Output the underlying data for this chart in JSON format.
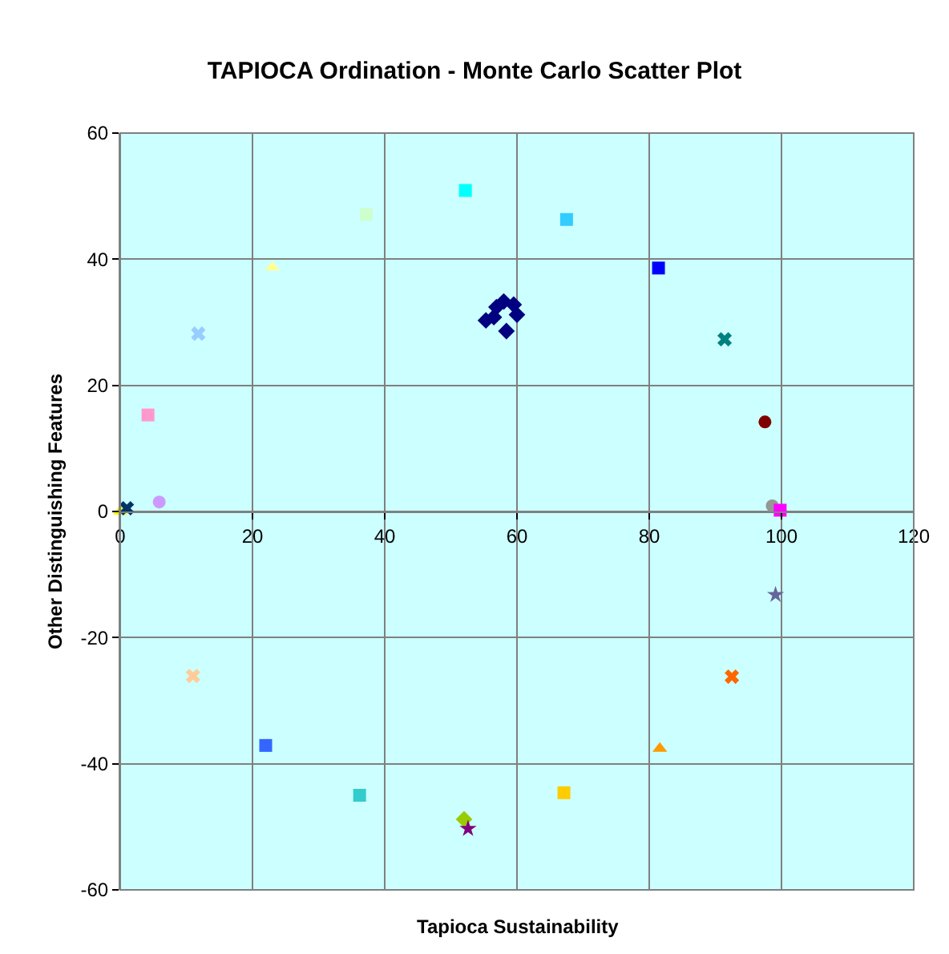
{
  "chart_data": {
    "type": "scatter",
    "title": "TAPIOCA Ordination - Monte Carlo Scatter Plot",
    "xlabel": "Tapioca Sustainability",
    "ylabel": "Other Distinguishing Features",
    "xlim": [
      0,
      120
    ],
    "xticks": [
      0,
      20,
      40,
      60,
      80,
      100,
      120
    ],
    "ylim": [
      -60,
      60
    ],
    "yticks": [
      -60,
      -40,
      -20,
      0,
      20,
      40,
      60
    ],
    "grid": true,
    "legend": false,
    "series": [
      {
        "color": "#000080",
        "marker": "diamond",
        "x": [
          55.3,
          56.9,
          58.0,
          58.4,
          56.5,
          59.5,
          60.0
        ],
        "values": [
          30.3,
          32.4,
          33.3,
          28.6,
          30.8,
          32.8,
          31.2
        ]
      },
      {
        "color": "#ffff00",
        "marker": "triangle",
        "x": [
          0
        ],
        "values": [
          0
        ]
      },
      {
        "color": "#003366",
        "marker": "cross",
        "x": [
          1
        ],
        "values": [
          0.5
        ]
      },
      {
        "color": "#cc99ff",
        "marker": "circle",
        "x": [
          5.9
        ],
        "values": [
          1.5
        ]
      },
      {
        "color": "#ff99cc",
        "marker": "square",
        "x": [
          4.2
        ],
        "values": [
          15.3
        ]
      },
      {
        "color": "#99ccff",
        "marker": "cross",
        "x": [
          11.8
        ],
        "values": [
          28.2
        ]
      },
      {
        "color": "#ffff99",
        "marker": "triangle",
        "x": [
          23
        ],
        "values": [
          38.7
        ]
      },
      {
        "color": "#ccffcc",
        "marker": "square",
        "x": [
          37.2
        ],
        "values": [
          47.1
        ]
      },
      {
        "color": "#00ffff",
        "marker": "square",
        "x": [
          52.2
        ],
        "values": [
          50.9
        ]
      },
      {
        "color": "#33ccff",
        "marker": "square",
        "x": [
          67.5
        ],
        "values": [
          46.3
        ]
      },
      {
        "color": "#0000ff",
        "marker": "square",
        "x": [
          81.4
        ],
        "values": [
          38.6
        ]
      },
      {
        "color": "#008080",
        "marker": "cross",
        "x": [
          91.4
        ],
        "values": [
          27.3
        ]
      },
      {
        "color": "#800000",
        "marker": "circle",
        "x": [
          97.5
        ],
        "values": [
          14.2
        ]
      },
      {
        "color": "#969696",
        "marker": "circle",
        "x": [
          98.6
        ],
        "values": [
          0.9
        ]
      },
      {
        "color": "#ff00ff",
        "marker": "square",
        "x": [
          99.8
        ],
        "values": [
          0.2
        ]
      },
      {
        "color": "#666699",
        "marker": "star",
        "x": [
          99.1
        ],
        "values": [
          -13.2
        ]
      },
      {
        "color": "#ffcc99",
        "marker": "cross",
        "x": [
          11
        ],
        "values": [
          -26.1
        ]
      },
      {
        "color": "#ff6600",
        "marker": "cross",
        "x": [
          92.5
        ],
        "values": [
          -26.2
        ]
      },
      {
        "color": "#3366ff",
        "marker": "square",
        "x": [
          22
        ],
        "values": [
          -37.1
        ]
      },
      {
        "color": "#ff9900",
        "marker": "triangle",
        "x": [
          81.6
        ],
        "values": [
          -37.6
        ]
      },
      {
        "color": "#ffcc00",
        "marker": "square",
        "x": [
          67.1
        ],
        "values": [
          -44.6
        ]
      },
      {
        "color": "#33cccc",
        "marker": "square",
        "x": [
          36.2
        ],
        "values": [
          -45
        ]
      },
      {
        "color": "#99cc00",
        "marker": "diamond",
        "x": [
          52
        ],
        "values": [
          -48.8
        ]
      },
      {
        "color": "#800080",
        "marker": "star",
        "x": [
          52.6
        ],
        "values": [
          -50.3
        ]
      }
    ]
  }
}
